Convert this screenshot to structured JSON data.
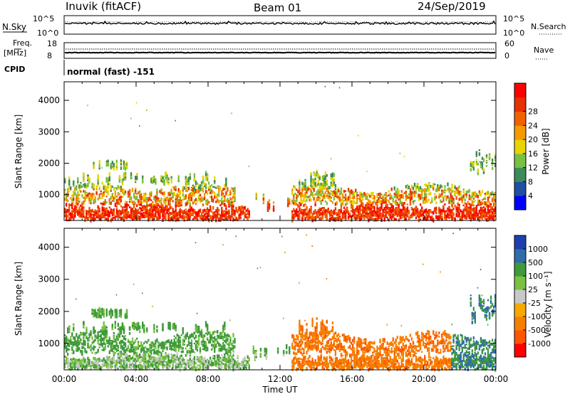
{
  "header": {
    "station": "Inuvik (fitACF)",
    "beam": "Beam 01",
    "date": "24/Sep/2019"
  },
  "top_panels": {
    "nsky_label": "N.Sky",
    "nsky_ticks": [
      "10^5",
      "10^0"
    ],
    "nsearch_label": "N.Search",
    "nsearch_ticks": [
      "10^5",
      "10^0"
    ],
    "freq_label_1": "Freq.",
    "freq_label_2": "[MHz]",
    "freq_ticks": [
      "18",
      "8"
    ],
    "nave_label": "Nave",
    "nave_ticks": [
      "60",
      "0"
    ],
    "cpid_label": "CPID",
    "cpid_text": "normal (fast) -151"
  },
  "colors": {
    "power": [
      "#0000ff",
      "#1f4fa0",
      "#3c8a5c",
      "#79c043",
      "#e8d400",
      "#f59a00",
      "#f06200",
      "#e63200",
      "#ff0000"
    ],
    "velocity": [
      "#ff0000",
      "#ff5500",
      "#f57f00",
      "#f5a800",
      "#c8c8c8",
      "#7ac142",
      "#3f9a3c",
      "#2f6da8",
      "#1f3fb0"
    ]
  },
  "chart_data": [
    {
      "type": "heatmap",
      "title": "Power",
      "ylabel": "Slant Range [km]",
      "xlabel": "",
      "ylim": [
        180,
        4590
      ],
      "xlim": [
        0,
        24
      ],
      "y_ticks": [
        "1000",
        "2000",
        "3000",
        "4000"
      ],
      "x_ticks": [
        "00:00",
        "04:00",
        "08:00",
        "12:00",
        "16:00",
        "20:00",
        "00:00"
      ],
      "colorbar_label": "Power [dB]",
      "colorbar_ticks": [
        "4",
        "8",
        "12",
        "16",
        "20",
        "24",
        "28"
      ]
    },
    {
      "type": "heatmap",
      "title": "Velocity",
      "ylabel": "Slant Range [km]",
      "xlabel": "Time UT",
      "ylim": [
        180,
        4590
      ],
      "xlim": [
        0,
        24
      ],
      "y_ticks": [
        "1000",
        "2000",
        "3000",
        "4000"
      ],
      "x_ticks": [
        "00:00",
        "04:00",
        "08:00",
        "12:00",
        "16:00",
        "20:00",
        "00:00"
      ],
      "colorbar_label": "Velocity [m s⁻¹]",
      "colorbar_ticks": [
        "1000",
        "500",
        "100",
        "25",
        "-25",
        "-100",
        "-500",
        "-1000"
      ]
    }
  ]
}
